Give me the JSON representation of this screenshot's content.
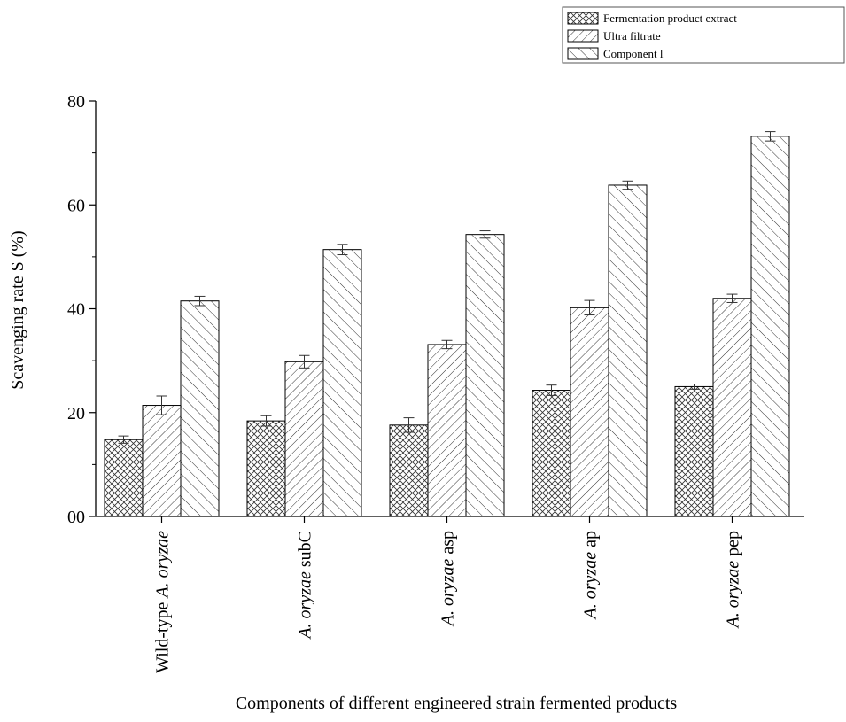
{
  "chart_data": {
    "type": "bar",
    "title": "",
    "xlabel": "Components of different engineered strain fermented products",
    "ylabel": "Scavenging rate S (%)",
    "ylim": [
      0,
      80
    ],
    "yticks": [
      0,
      20,
      40,
      60,
      80
    ],
    "ytick_labels": [
      "00",
      "20",
      "40",
      "60",
      "80"
    ],
    "grid": false,
    "legend_position": "top-right",
    "categories": [
      {
        "pre": "Wild-type ",
        "italic": "A. oryzae",
        "post": ""
      },
      {
        "pre": "",
        "italic": "A. oryzae",
        "post": " subC"
      },
      {
        "pre": "",
        "italic": "A. oryzae",
        "post": " asp"
      },
      {
        "pre": "",
        "italic": "A. oryzae",
        "post": " ap"
      },
      {
        "pre": "",
        "italic": "A. oryzae",
        "post": " pep"
      }
    ],
    "series": [
      {
        "name": "Fermentation product extract",
        "pattern": "crosshatch",
        "values": [
          14.8,
          18.4,
          17.6,
          24.3,
          25.0
        ],
        "errors": [
          0.7,
          1.0,
          1.4,
          1.0,
          0.5
        ]
      },
      {
        "name": "Ultra filtrate",
        "pattern": "backslash",
        "values": [
          21.4,
          29.8,
          33.1,
          40.2,
          42.0
        ],
        "errors": [
          1.8,
          1.2,
          0.8,
          1.4,
          0.8
        ]
      },
      {
        "name": "Component l",
        "pattern": "slash",
        "values": [
          41.5,
          51.4,
          54.3,
          63.8,
          73.2
        ],
        "errors": [
          0.9,
          1.0,
          0.7,
          0.8,
          0.9
        ]
      }
    ]
  }
}
